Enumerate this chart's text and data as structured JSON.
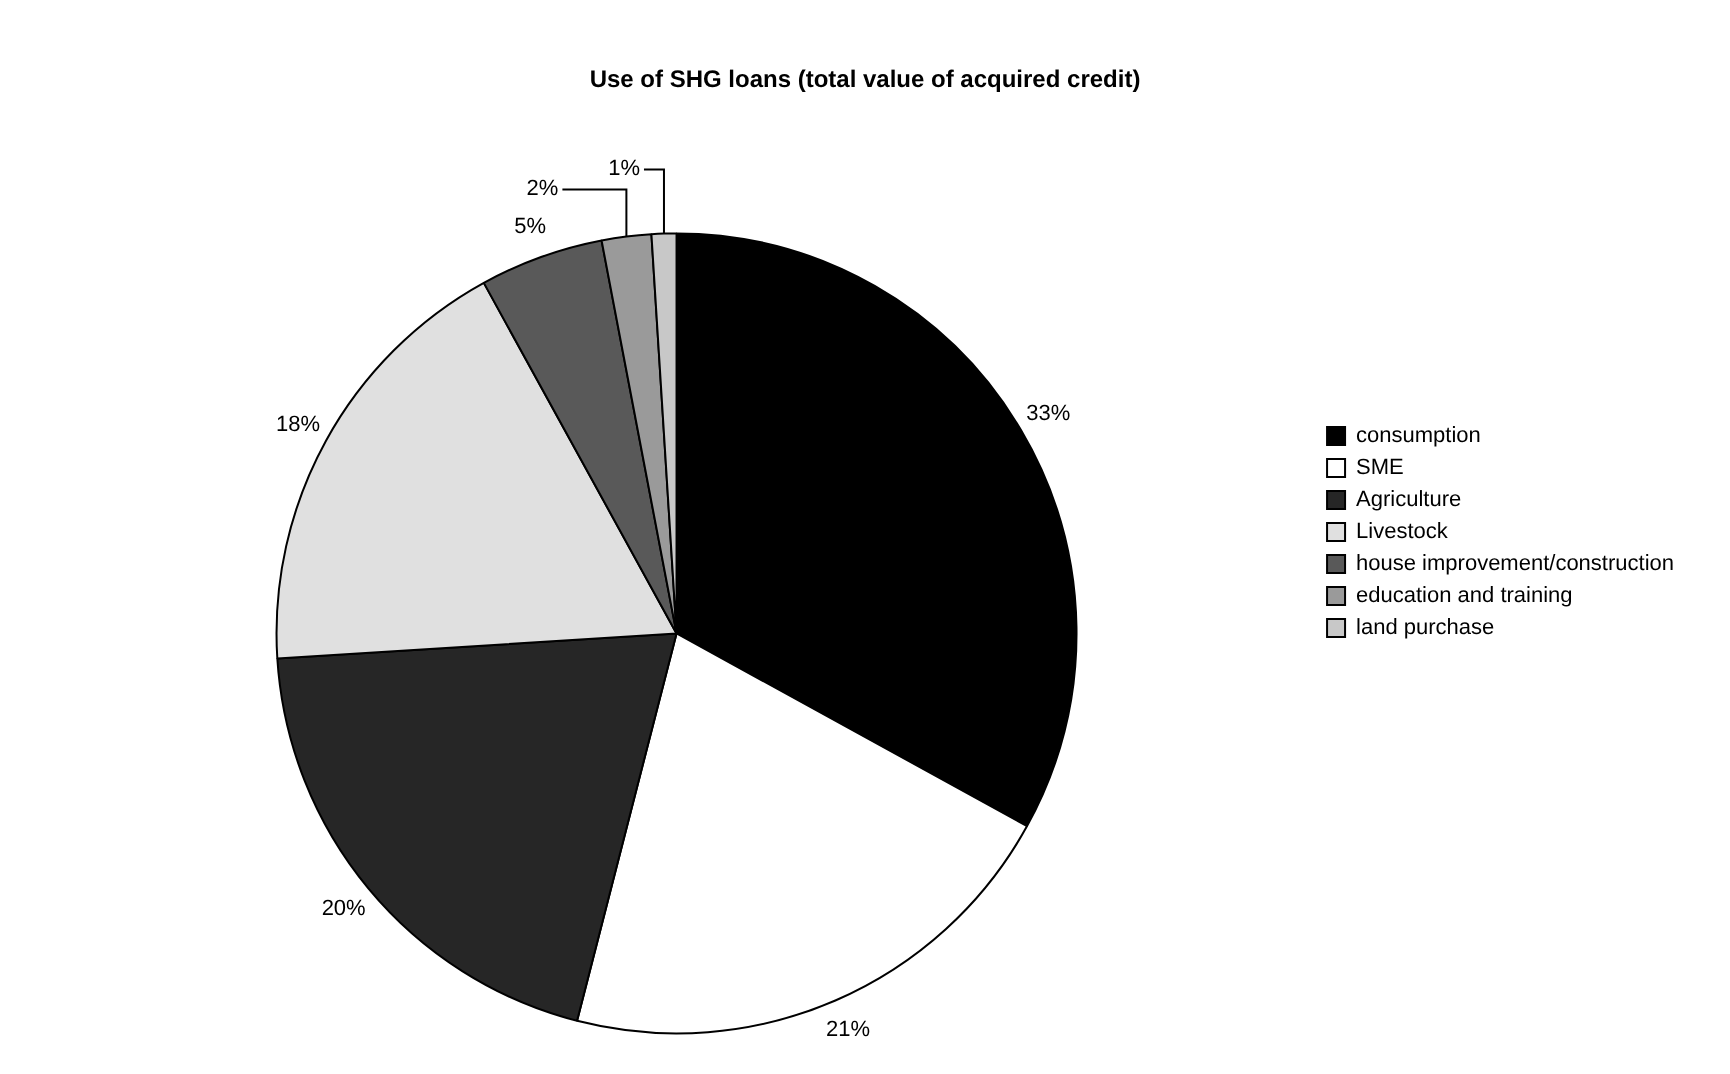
{
  "chart_data": {
    "type": "pie",
    "title": "Use of SHG loans (total value of acquired credit)",
    "categories": [
      "consumption",
      "SME",
      "Agriculture",
      "Livestock",
      "house improvement/construction",
      "education and training",
      "land purchase"
    ],
    "values": [
      33,
      21,
      20,
      18,
      5,
      2,
      1
    ],
    "colors": [
      "#000000",
      "#ffffff",
      "#262626",
      "#e0e0e0",
      "#595959",
      "#9a9a9a",
      "#c8c8c8"
    ],
    "value_labels": [
      "33%",
      "21%",
      "20%",
      "18%",
      "5%",
      "2%",
      "1%"
    ],
    "legend": "right"
  }
}
